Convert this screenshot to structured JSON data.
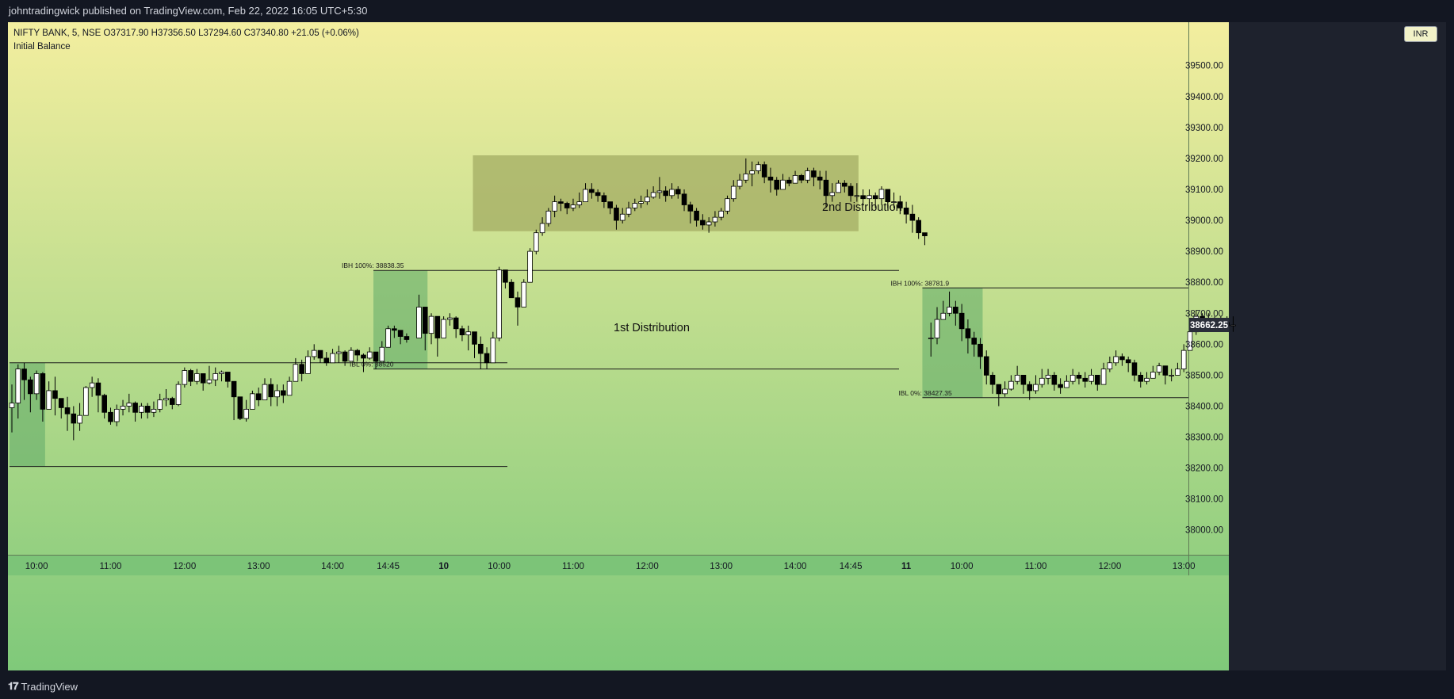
{
  "header": {
    "published_text": "johntradingwick published on TradingView.com, Feb 22, 2022 16:05 UTC+5:30"
  },
  "legend": {
    "symbol_line": "NIFTY BANK, 5, NSE  O37317.90  H37356.50  L37294.60  C37340.80  +21.05 (+0.06%)",
    "indicator": "Initial Balance"
  },
  "currency_button": "INR",
  "branding": "TradingView",
  "colors": {
    "background_top": "#f3ee9f",
    "background_bottom": "#7fc97a",
    "up_body": "#ffffff",
    "down_body": "#000000",
    "ib_box": "#5fa967",
    "distribution_box": "#a3ac63",
    "price_label_bg": "#2a2e39"
  },
  "chart_data": {
    "type": "candlestick",
    "symbol": "NIFTY BANK",
    "interval": "5",
    "exchange": "NSE",
    "ylim": [
      37920,
      39640
    ],
    "y_ticks": [
      39500,
      39400,
      39300,
      39200,
      39100,
      39000,
      38900,
      38800,
      38700,
      38600,
      38500,
      38400,
      38300,
      38200,
      38100,
      38000
    ],
    "x_tick_labels": [
      {
        "label": "10:00",
        "bar": 4
      },
      {
        "label": "11:00",
        "bar": 16
      },
      {
        "label": "12:00",
        "bar": 28
      },
      {
        "label": "13:00",
        "bar": 40
      },
      {
        "label": "14:00",
        "bar": 52
      },
      {
        "label": "14:45",
        "bar": 61
      },
      {
        "label": "10",
        "bar": 70
      },
      {
        "label": "10:00",
        "bar": 79
      },
      {
        "label": "11:00",
        "bar": 91
      },
      {
        "label": "12:00",
        "bar": 103
      },
      {
        "label": "13:00",
        "bar": 115
      },
      {
        "label": "14:00",
        "bar": 127
      },
      {
        "label": "14:45",
        "bar": 136
      },
      {
        "label": "11",
        "bar": 145
      },
      {
        "label": "10:00",
        "bar": 154
      },
      {
        "label": "11:00",
        "bar": 166
      },
      {
        "label": "12:00",
        "bar": 178
      },
      {
        "label": "13:00",
        "bar": 190
      }
    ],
    "last_price": "38662.25",
    "days": [
      {
        "start_bar": 0,
        "o": 38395,
        "bars": [
          [
            38410,
            38315,
            38470
          ],
          [
            38520,
            38360,
            38535
          ],
          [
            38485,
            38420,
            38540
          ],
          [
            38440,
            38380,
            38495
          ],
          [
            38505,
            38420,
            38515
          ],
          [
            38390,
            38350,
            38510
          ],
          [
            38450,
            38400,
            38480
          ],
          [
            38425,
            38370,
            38495
          ],
          [
            38395,
            38360,
            38425
          ],
          [
            38375,
            38320,
            38430
          ],
          [
            38345,
            38290,
            38400
          ],
          [
            38370,
            38320,
            38410
          ],
          [
            38460,
            38375,
            38465
          ],
          [
            38475,
            38430,
            38495
          ],
          [
            38435,
            38380,
            38490
          ],
          [
            38380,
            38360,
            38440
          ],
          [
            38350,
            38340,
            38395
          ],
          [
            38390,
            38335,
            38405
          ],
          [
            38400,
            38370,
            38420
          ],
          [
            38410,
            38380,
            38440
          ],
          [
            38380,
            38350,
            38415
          ],
          [
            38400,
            38360,
            38410
          ],
          [
            38380,
            38360,
            38410
          ],
          [
            38390,
            38365,
            38415
          ],
          [
            38420,
            38380,
            38440
          ],
          [
            38425,
            38400,
            38455
          ],
          [
            38405,
            38390,
            38430
          ],
          [
            38470,
            38400,
            38480
          ],
          [
            38515,
            38460,
            38525
          ],
          [
            38480,
            38465,
            38520
          ],
          [
            38505,
            38470,
            38520
          ],
          [
            38475,
            38450,
            38500
          ],
          [
            38485,
            38470,
            38530
          ],
          [
            38505,
            38465,
            38525
          ],
          [
            38510,
            38480,
            38515
          ],
          [
            38480,
            38460,
            38510
          ],
          [
            38430,
            38355,
            38480
          ],
          [
            38360,
            38355,
            38420
          ],
          [
            38390,
            38350,
            38420
          ],
          [
            38440,
            38390,
            38450
          ],
          [
            38420,
            38400,
            38460
          ],
          [
            38470,
            38420,
            38490
          ],
          [
            38430,
            38400,
            38490
          ],
          [
            38450,
            38400,
            38470
          ],
          [
            38435,
            38410,
            38470
          ],
          [
            38480,
            38435,
            38495
          ],
          [
            38535,
            38480,
            38555
          ],
          [
            38505,
            38480,
            38550
          ],
          [
            38560,
            38505,
            38580
          ],
          [
            38580,
            38550,
            38600
          ],
          [
            38555,
            38540,
            38575
          ],
          [
            38540,
            38530,
            38575
          ],
          [
            38570,
            38540,
            38585
          ],
          [
            38575,
            38540,
            38595
          ],
          [
            38545,
            38530,
            38580
          ],
          [
            38580,
            38545,
            38590
          ],
          [
            38565,
            38545,
            38585
          ],
          [
            38555,
            38510,
            38570
          ],
          [
            38575,
            38550,
            38590
          ],
          [
            38545,
            38520,
            38560
          ],
          [
            38590,
            38545,
            38610
          ],
          [
            38650,
            38590,
            38660
          ],
          [
            38645,
            38620,
            38660
          ],
          [
            38625,
            38600,
            38645
          ],
          [
            38615,
            38605,
            38635
          ]
        ]
      },
      {
        "start_bar": 66,
        "o": 38620,
        "bars": [
          [
            38720,
            38620,
            38760
          ],
          [
            38635,
            38580,
            38720
          ],
          [
            38690,
            38600,
            38700
          ],
          [
            38620,
            38560,
            38645
          ],
          [
            38680,
            38620,
            38690
          ],
          [
            38685,
            38660,
            38700
          ],
          [
            38650,
            38620,
            38690
          ],
          [
            38630,
            38610,
            38660
          ],
          [
            38640,
            38580,
            38660
          ],
          [
            38600,
            38555,
            38640
          ],
          [
            38570,
            38520,
            38625
          ],
          [
            38540,
            38520,
            38590
          ],
          [
            38620,
            38540,
            38640
          ],
          [
            38840,
            38610,
            38850
          ],
          [
            38800,
            38780,
            38840
          ],
          [
            38750,
            38760,
            38810
          ],
          [
            38720,
            38660,
            38770
          ],
          [
            38800,
            38730,
            38810
          ],
          [
            38900,
            38800,
            38910
          ],
          [
            38960,
            38890,
            38970
          ],
          [
            38990,
            38950,
            39010
          ],
          [
            39030,
            38980,
            39040
          ],
          [
            39060,
            39010,
            39080
          ],
          [
            39055,
            39030,
            39070
          ],
          [
            39040,
            39020,
            39060
          ],
          [
            39050,
            39030,
            39070
          ],
          [
            39060,
            39040,
            39090
          ],
          [
            39100,
            39060,
            39120
          ],
          [
            39090,
            39070,
            39120
          ],
          [
            39080,
            39060,
            39100
          ],
          [
            39060,
            39040,
            39090
          ],
          [
            39040,
            39020,
            39060
          ],
          [
            39000,
            38970,
            39050
          ],
          [
            39020,
            38990,
            39040
          ],
          [
            39040,
            39010,
            39060
          ],
          [
            39055,
            39030,
            39070
          ],
          [
            39060,
            39040,
            39080
          ],
          [
            39075,
            39050,
            39100
          ],
          [
            39090,
            39070,
            39110
          ],
          [
            39095,
            39070,
            39140
          ],
          [
            39080,
            39060,
            39110
          ],
          [
            39100,
            39070,
            39120
          ],
          [
            39085,
            39070,
            39110
          ],
          [
            39050,
            39030,
            39100
          ],
          [
            39030,
            38990,
            39060
          ],
          [
            39000,
            38980,
            39040
          ],
          [
            38985,
            38970,
            39020
          ],
          [
            38995,
            38960,
            39010
          ],
          [
            39010,
            38980,
            39030
          ],
          [
            39030,
            39000,
            39040
          ],
          [
            39070,
            39020,
            39080
          ],
          [
            39110,
            39060,
            39130
          ],
          [
            39130,
            39100,
            39150
          ],
          [
            39150,
            39120,
            39200
          ],
          [
            39160,
            39110,
            39190
          ],
          [
            39180,
            39150,
            39190
          ],
          [
            39140,
            39120,
            39190
          ],
          [
            39130,
            39090,
            39170
          ],
          [
            39100,
            39080,
            39140
          ],
          [
            39130,
            39100,
            39150
          ],
          [
            39120,
            39110,
            39140
          ],
          [
            39145,
            39120,
            39160
          ],
          [
            39130,
            39120,
            39150
          ],
          [
            39160,
            39120,
            39170
          ],
          [
            39140,
            39110,
            39170
          ],
          [
            39130,
            39100,
            39160
          ],
          [
            39080,
            39040,
            39160
          ],
          [
            39090,
            39060,
            39120
          ],
          [
            39120,
            39090,
            39130
          ],
          [
            39110,
            39090,
            39130
          ],
          [
            39080,
            39060,
            39120
          ],
          [
            39080,
            39060,
            39120
          ],
          [
            39070,
            39050,
            39100
          ],
          [
            39080,
            39050,
            39100
          ],
          [
            39070,
            39040,
            39090
          ],
          [
            39100,
            39050,
            39110
          ],
          [
            39060,
            39040,
            39100
          ],
          [
            39060,
            39040,
            39090
          ],
          [
            39040,
            39020,
            39080
          ],
          [
            39020,
            38990,
            39060
          ],
          [
            39000,
            38960,
            39050
          ],
          [
            38960,
            38940,
            39010
          ],
          [
            38950,
            38920,
            38960
          ]
        ]
      },
      {
        "start_bar": 149,
        "o": 38620,
        "bars": [
          [
            38620,
            38560,
            38670
          ],
          [
            38680,
            38600,
            38720
          ],
          [
            38700,
            38680,
            38740
          ],
          [
            38720,
            38690,
            38770
          ],
          [
            38700,
            38660,
            38740
          ],
          [
            38650,
            38610,
            38730
          ],
          [
            38620,
            38570,
            38680
          ],
          [
            38600,
            38560,
            38640
          ],
          [
            38560,
            38520,
            38620
          ],
          [
            38500,
            38470,
            38580
          ],
          [
            38470,
            38440,
            38510
          ],
          [
            38440,
            38400,
            38470
          ],
          [
            38455,
            38430,
            38480
          ],
          [
            38480,
            38450,
            38500
          ],
          [
            38500,
            38470,
            38530
          ],
          [
            38470,
            38440,
            38500
          ],
          [
            38450,
            38420,
            38480
          ],
          [
            38470,
            38440,
            38500
          ],
          [
            38490,
            38460,
            38520
          ],
          [
            38500,
            38470,
            38520
          ],
          [
            38470,
            38450,
            38510
          ],
          [
            38460,
            38440,
            38490
          ],
          [
            38480,
            38460,
            38500
          ],
          [
            38500,
            38470,
            38520
          ],
          [
            38490,
            38470,
            38510
          ],
          [
            38480,
            38460,
            38510
          ],
          [
            38500,
            38470,
            38520
          ],
          [
            38470,
            38450,
            38500
          ],
          [
            38520,
            38470,
            38540
          ],
          [
            38540,
            38510,
            38560
          ],
          [
            38560,
            38530,
            38580
          ],
          [
            38550,
            38530,
            38570
          ],
          [
            38540,
            38510,
            38560
          ],
          [
            38500,
            38480,
            38550
          ],
          [
            38480,
            38460,
            38510
          ],
          [
            38490,
            38470,
            38510
          ],
          [
            38510,
            38490,
            38530
          ],
          [
            38530,
            38500,
            38540
          ],
          [
            38500,
            38470,
            38530
          ],
          [
            38500,
            38480,
            38520
          ],
          [
            38520,
            38500,
            38540
          ],
          [
            38580,
            38510,
            38600
          ],
          [
            38640,
            38580,
            38650
          ],
          [
            38690,
            38630,
            38710
          ],
          [
            38670,
            38640,
            38700
          ],
          [
            38680,
            38650,
            38700
          ],
          [
            38670,
            38650,
            38690
          ],
          [
            38670,
            38650,
            38690
          ],
          [
            38660,
            38640,
            38690
          ],
          [
            38662,
            38640,
            38690
          ]
        ]
      }
    ],
    "initial_balance": [
      {
        "ibh": 38540,
        "ibl": 38205,
        "from_bar": 0,
        "to_bar": 5
      },
      {
        "ibh": 38838.35,
        "ibl": 38520,
        "from_bar": 59,
        "to_bar": 67,
        "ibh_label": "IBH 100%: 38838.35",
        "ibl_label": "IBL 0%: 38520"
      },
      {
        "ibh": 38781.9,
        "ibl": 38427.35,
        "from_bar": 148,
        "to_bar": 157,
        "ibh_label": "IBH 100%: 38781.9",
        "ibl_label": "IBL 0%: 38427.35"
      }
    ],
    "distribution_boxes": [
      {
        "label": "1st Distribution",
        "from_bar": 59,
        "to_bar": 67,
        "high": 38838.35,
        "low": 38520
      },
      {
        "label": "2nd Distribution",
        "from_bar": 75,
        "to_bar": 137,
        "high": 39210,
        "low": 38965
      }
    ]
  }
}
